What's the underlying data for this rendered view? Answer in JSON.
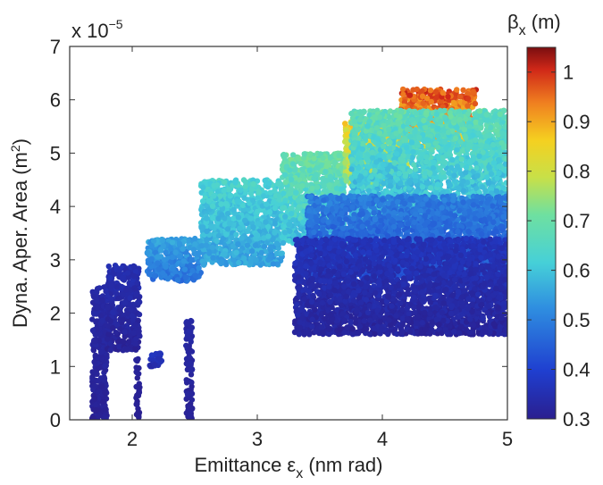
{
  "chart_data": {
    "type": "scatter",
    "title": "",
    "xlabel": {
      "main": "Emittance ε",
      "sub": "x",
      "tail": " (nm rad)"
    },
    "ylabel": {
      "main": "Dyna. Aper. Area (m",
      "sup": "2",
      "tail": ")"
    },
    "y_multiplier": {
      "base": "x 10",
      "exp": "−5"
    },
    "xlim": [
      1.5,
      5
    ],
    "ylim": [
      0,
      7
    ],
    "x_ticks": [
      "2",
      "3",
      "4",
      "5"
    ],
    "x_tick_values": [
      2,
      3,
      4,
      5
    ],
    "y_ticks": [
      "0",
      "1",
      "2",
      "3",
      "4",
      "5",
      "6",
      "7"
    ],
    "y_tick_values": [
      0,
      1,
      2,
      3,
      4,
      5,
      6,
      7
    ],
    "grid": false,
    "colorbar": {
      "label": {
        "main": "β",
        "sub": "x",
        "tail": " (m)"
      },
      "range": [
        0.3,
        1.05
      ],
      "ticks": [
        "0.3",
        "0.4",
        "0.5",
        "0.6",
        "0.7",
        "0.8",
        "0.9",
        "1"
      ],
      "tick_values": [
        0.3,
        0.4,
        0.5,
        0.6,
        0.7,
        0.8,
        0.9,
        1.0
      ],
      "colormap": "jet"
    },
    "point_clusters": [
      {
        "x": [
          1.68,
          1.8
        ],
        "y": [
          0.0,
          2.5
        ],
        "beta": [
          0.3,
          0.34
        ]
      },
      {
        "x": [
          1.8,
          2.06
        ],
        "y": [
          1.3,
          2.9
        ],
        "beta": [
          0.3,
          0.36
        ]
      },
      {
        "x": [
          2.03,
          2.06
        ],
        "y": [
          0.0,
          1.15
        ],
        "beta": [
          0.3,
          0.32
        ]
      },
      {
        "x": [
          2.14,
          2.25
        ],
        "y": [
          1.0,
          1.25
        ],
        "beta": [
          0.33,
          0.38
        ]
      },
      {
        "x": [
          2.43,
          2.48
        ],
        "y": [
          0.0,
          1.9
        ],
        "beta": [
          0.3,
          0.34
        ]
      },
      {
        "x": [
          2.12,
          2.55
        ],
        "y": [
          2.6,
          3.4
        ],
        "beta": [
          0.45,
          0.58
        ]
      },
      {
        "x": [
          2.55,
          3.2
        ],
        "y": [
          2.9,
          4.5
        ],
        "beta": [
          0.52,
          0.66
        ]
      },
      {
        "x": [
          3.2,
          3.7
        ],
        "y": [
          3.3,
          5.0
        ],
        "beta": [
          0.55,
          0.74
        ]
      },
      {
        "x": [
          3.7,
          4.2
        ],
        "y": [
          4.4,
          5.6
        ],
        "beta": [
          0.68,
          0.9
        ]
      },
      {
        "x": [
          4.15,
          4.75
        ],
        "y": [
          5.1,
          6.2
        ],
        "beta": [
          0.8,
          1.03
        ]
      },
      {
        "x": [
          3.75,
          5.0
        ],
        "y": [
          3.6,
          5.8
        ],
        "beta": [
          0.52,
          0.72
        ]
      },
      {
        "x": [
          3.4,
          5.0
        ],
        "y": [
          2.6,
          4.2
        ],
        "beta": [
          0.4,
          0.52
        ]
      },
      {
        "x": [
          3.3,
          5.0
        ],
        "y": [
          1.6,
          3.4
        ],
        "beta": [
          0.3,
          0.38
        ]
      }
    ]
  }
}
